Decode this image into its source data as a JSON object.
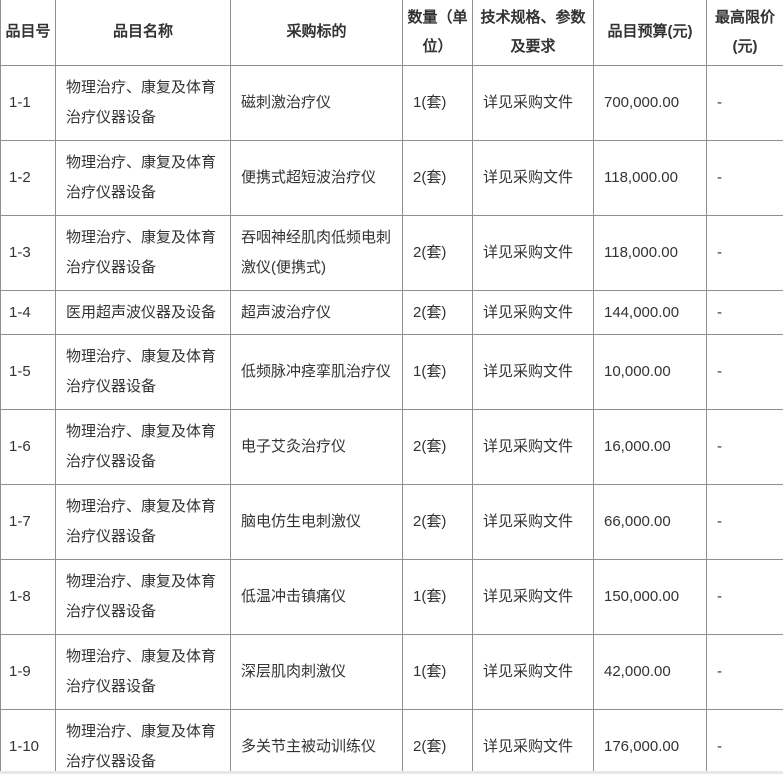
{
  "colors": {
    "border": "#8f8f8f",
    "text": "#333333",
    "background": "#ffffff",
    "bottom_strip": "#e8e8e8"
  },
  "table": {
    "columns": [
      {
        "key": "item_no",
        "label": "品目号"
      },
      {
        "key": "item_name",
        "label": "品目名称"
      },
      {
        "key": "target",
        "label": "采购标的"
      },
      {
        "key": "quantity",
        "label": "数量（单位）"
      },
      {
        "key": "spec",
        "label": "技术规格、参数及要求"
      },
      {
        "key": "budget",
        "label": "品目预算(元)"
      },
      {
        "key": "cap",
        "label": "最高限价(元)"
      }
    ],
    "rows": [
      {
        "item_no": "1-1",
        "item_name": "物理治疗、康复及体育治疗仪器设备",
        "target": "磁刺激治疗仪",
        "quantity": "1(套)",
        "spec": "详见采购文件",
        "budget": "700,000.00",
        "cap": "-",
        "size": "tall"
      },
      {
        "item_no": "1-2",
        "item_name": "物理治疗、康复及体育治疗仪器设备",
        "target": "便携式超短波治疗仪",
        "quantity": "2(套)",
        "spec": "详见采购文件",
        "budget": "118,000.00",
        "cap": "-",
        "size": "tall"
      },
      {
        "item_no": "1-3",
        "item_name": "物理治疗、康复及体育治疗仪器设备",
        "target": "吞咽神经肌肉低频电刺激仪(便携式)",
        "quantity": "2(套)",
        "spec": "详见采购文件",
        "budget": "118,000.00",
        "cap": "-",
        "size": "tall"
      },
      {
        "item_no": "1-4",
        "item_name": "医用超声波仪器及设备",
        "target": "超声波治疗仪",
        "quantity": "2(套)",
        "spec": "详见采购文件",
        "budget": "144,000.00",
        "cap": "-",
        "size": "short"
      },
      {
        "item_no": "1-5",
        "item_name": "物理治疗、康复及体育治疗仪器设备",
        "target": "低频脉冲痉挛肌治疗仪",
        "quantity": "1(套)",
        "spec": "详见采购文件",
        "budget": "10,000.00",
        "cap": "-",
        "size": "tall"
      },
      {
        "item_no": "1-6",
        "item_name": "物理治疗、康复及体育治疗仪器设备",
        "target": "电子艾灸治疗仪",
        "quantity": "2(套)",
        "spec": "详见采购文件",
        "budget": "16,000.00",
        "cap": "-",
        "size": "tall"
      },
      {
        "item_no": "1-7",
        "item_name": "物理治疗、康复及体育治疗仪器设备",
        "target": "脑电仿生电刺激仪",
        "quantity": "2(套)",
        "spec": "详见采购文件",
        "budget": "66,000.00",
        "cap": "-",
        "size": "tall"
      },
      {
        "item_no": "1-8",
        "item_name": "物理治疗、康复及体育治疗仪器设备",
        "target": "低温冲击镇痛仪",
        "quantity": "1(套)",
        "spec": "详见采购文件",
        "budget": "150,000.00",
        "cap": "-",
        "size": "tall"
      },
      {
        "item_no": "1-9",
        "item_name": "物理治疗、康复及体育治疗仪器设备",
        "target": "深层肌肉刺激仪",
        "quantity": "1(套)",
        "spec": "详见采购文件",
        "budget": "42,000.00",
        "cap": "-",
        "size": "tall"
      },
      {
        "item_no": "1-10",
        "item_name": "物理治疗、康复及体育治疗仪器设备",
        "target": "多关节主被动训练仪",
        "quantity": "2(套)",
        "spec": "详见采购文件",
        "budget": "176,000.00",
        "cap": "-",
        "size": "tall"
      }
    ]
  }
}
